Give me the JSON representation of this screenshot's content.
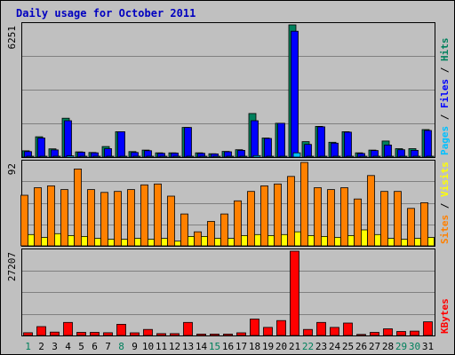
{
  "chart_data": {
    "title": "Daily usage for October 2011",
    "type": "bar",
    "categories": [
      "1",
      "2",
      "3",
      "4",
      "5",
      "6",
      "7",
      "8",
      "9",
      "10",
      "11",
      "12",
      "13",
      "14",
      "15",
      "16",
      "17",
      "18",
      "19",
      "20",
      "21",
      "22",
      "23",
      "24",
      "25",
      "26",
      "27",
      "28",
      "29",
      "30",
      "31"
    ],
    "weekend_days": [
      "1",
      "8",
      "15",
      "22",
      "29",
      "30"
    ],
    "panels": [
      {
        "id": "hits-files-pages",
        "ymax_label": "6251",
        "side_label": [
          "Pages",
          "Files",
          "Hits"
        ],
        "series": [
          {
            "name": "Hits",
            "color": "#00805c",
            "values": [
              298,
              960,
              391,
              1838,
              247,
              220,
              500,
              1200,
              260,
              330,
              200,
              200,
              1400,
              200,
              160,
              270,
              350,
              2060,
              900,
              1600,
              6251,
              730,
              1450,
              700,
              1200,
              200,
              330,
              760,
              400,
              400,
              1300
            ]
          },
          {
            "name": "Files",
            "color": "#0000ff",
            "values": [
              260,
              900,
              340,
              1720,
              230,
              200,
              400,
              1200,
              220,
              300,
              180,
              190,
              1400,
              180,
              150,
              250,
              320,
              1720,
              880,
              1600,
              5950,
              600,
              1430,
              660,
              1180,
              170,
              310,
              570,
              350,
              320,
              1260
            ]
          },
          {
            "name": "Pages",
            "color": "#00c0ff",
            "values": [
              30,
              40,
              20,
              60,
              20,
              15,
              25,
              40,
              20,
              15,
              10,
              10,
              35,
              10,
              10,
              15,
              20,
              70,
              30,
              40,
              200,
              30,
              40,
              20,
              30,
              10,
              15,
              25,
              20,
              15,
              40
            ]
          }
        ]
      },
      {
        "id": "visits-sites",
        "ymax_label": "92",
        "side_label": [
          "Sites",
          "Visits"
        ],
        "series": [
          {
            "name": "Visits",
            "color": "#ffff00",
            "values": [
              12,
              9,
              13,
              11,
              10,
              8,
              7,
              7,
              8,
              7,
              8,
              5,
              10,
              10,
              8,
              8,
              11,
              12,
              11,
              12,
              15,
              11,
              10,
              9,
              11,
              17,
              12,
              8,
              7,
              8,
              9
            ]
          },
          {
            "name": "Sites",
            "color": "#ff8000",
            "values": [
              54,
              62,
              64,
              60,
              82,
              60,
              57,
              58,
              60,
              65,
              66,
              53,
              34,
              15,
              26,
              34,
              48,
              58,
              64,
              66,
              74,
              89,
              62,
              60,
              62,
              50,
              75,
              58,
              58,
              40,
              46
            ]
          }
        ]
      },
      {
        "id": "kbytes",
        "ymax_label": "27207",
        "side_label": [
          "KBytes"
        ],
        "series": [
          {
            "name": "KBytes",
            "color": "#ff0000",
            "values": [
              900,
              2850,
              1100,
              4200,
              1000,
              1000,
              900,
              3600,
              850,
              1950,
              600,
              600,
              4200,
              450,
              450,
              450,
              850,
              5300,
              2600,
              4800,
              27207,
              1950,
              4200,
              2600,
              4000,
              350,
              1000,
              2150,
              1300,
              1400,
              4400
            ]
          }
        ]
      }
    ]
  }
}
